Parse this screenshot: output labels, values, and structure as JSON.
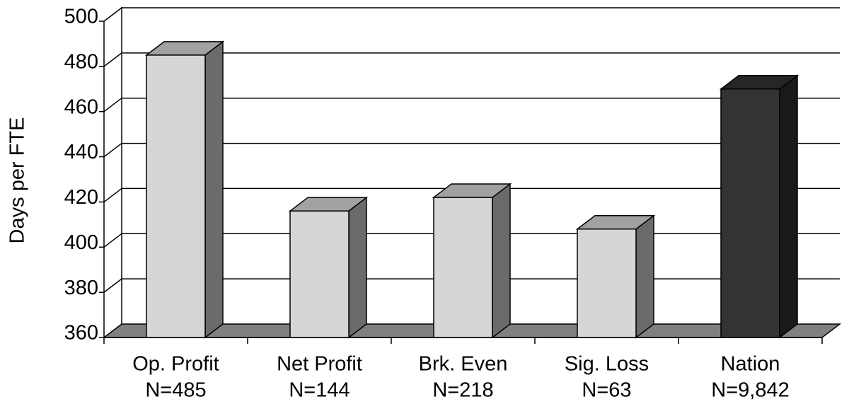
{
  "chart_data": {
    "type": "bar3d",
    "y_axis_label": "Days per FTE",
    "categories": [
      "Op. Profit",
      "Net Profit",
      "Brk. Even",
      "Sig. Loss",
      "Nation"
    ],
    "sample_sizes": [
      "N=485",
      "N=144",
      "N=218",
      "N=63",
      "N=9,842"
    ],
    "values": [
      485,
      416,
      422,
      408,
      470
    ],
    "colors": [
      "#d6d6d6",
      "#d6d6d6",
      "#d6d6d6",
      "#d6d6d6",
      "#333333"
    ],
    "ylim": [
      360,
      500
    ],
    "yticks": [
      360,
      380,
      400,
      420,
      440,
      460,
      480,
      500
    ],
    "grid": true
  }
}
